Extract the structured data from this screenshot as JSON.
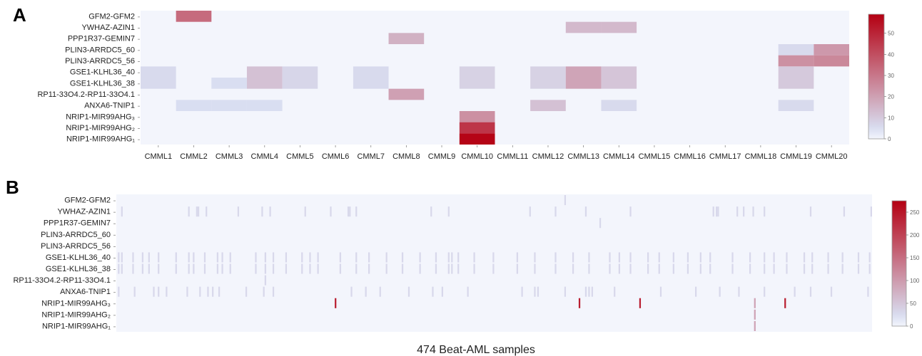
{
  "panels": {
    "a": {
      "letter": "A"
    },
    "b": {
      "letter": "B",
      "xlabel": "474 Beat-AML samples"
    }
  },
  "colors": {
    "low": "#f3f5fc",
    "mid": "#d9dff2",
    "high": "#b40012"
  },
  "chart_data": [
    {
      "type": "heatmap",
      "rows": [
        "GFM2-GFM2",
        "YWHAZ-AZIN1",
        "PPP1R37-GEMIN7",
        "PLIN3-ARRDC5_60",
        "PLIN3-ARRDC5_56",
        "GSE1-KLHL36_40",
        "GSE1-KLHL36_38",
        "RP11-33O4.2-RP11-33O4.1",
        "ANXA6-TNIP1",
        "NRIP1-MIR99AHG3",
        "NRIP1-MIR99AHG2",
        "NRIP1-MIR99AHG1"
      ],
      "columns": [
        "CMML1",
        "CMML2",
        "CMML3",
        "CMML4",
        "CMML5",
        "CMML6",
        "CMML7",
        "CMML8",
        "CMML9",
        "CMML10",
        "CMML11",
        "CMML12",
        "CMML13",
        "CMML14",
        "CMML15",
        "CMML16",
        "CMML17",
        "CMML18",
        "CMML19",
        "CMML20"
      ],
      "values": [
        [
          0,
          33,
          0,
          0,
          0,
          0,
          0,
          0,
          0,
          0,
          0,
          0,
          0,
          0,
          0,
          0,
          0,
          0,
          0,
          0
        ],
        [
          0,
          0,
          0,
          0,
          0,
          0,
          0,
          0,
          0,
          0,
          0,
          0,
          14,
          14,
          0,
          0,
          0,
          0,
          0,
          0
        ],
        [
          0,
          0,
          0,
          0,
          0,
          0,
          0,
          16,
          0,
          0,
          0,
          0,
          0,
          0,
          0,
          0,
          0,
          0,
          0,
          0
        ],
        [
          0,
          0,
          0,
          0,
          0,
          0,
          0,
          0,
          0,
          0,
          0,
          0,
          0,
          0,
          0,
          0,
          0,
          0,
          6,
          22
        ],
        [
          0,
          0,
          0,
          0,
          0,
          0,
          0,
          0,
          0,
          0,
          0,
          0,
          0,
          0,
          0,
          0,
          0,
          0,
          24,
          26
        ],
        [
          6,
          0,
          0,
          12,
          7,
          0,
          6,
          0,
          0,
          8,
          0,
          8,
          19,
          11,
          0,
          0,
          0,
          0,
          10,
          0
        ],
        [
          6,
          0,
          5,
          12,
          7,
          0,
          6,
          0,
          0,
          8,
          0,
          8,
          19,
          11,
          0,
          0,
          0,
          0,
          10,
          0
        ],
        [
          0,
          0,
          0,
          0,
          0,
          0,
          0,
          20,
          0,
          0,
          0,
          0,
          0,
          0,
          0,
          0,
          0,
          0,
          0,
          0
        ],
        [
          0,
          5,
          5,
          5,
          0,
          0,
          0,
          0,
          0,
          0,
          0,
          12,
          0,
          6,
          0,
          0,
          0,
          0,
          6,
          0
        ],
        [
          0,
          0,
          0,
          0,
          0,
          0,
          0,
          0,
          0,
          24,
          0,
          0,
          0,
          0,
          0,
          0,
          0,
          0,
          0,
          0
        ],
        [
          0,
          0,
          0,
          0,
          0,
          0,
          0,
          0,
          0,
          46,
          0,
          0,
          0,
          0,
          0,
          0,
          0,
          0,
          0,
          0
        ],
        [
          0,
          0,
          0,
          0,
          0,
          0,
          0,
          0,
          0,
          58,
          0,
          0,
          0,
          0,
          0,
          0,
          0,
          0,
          0,
          0
        ]
      ],
      "colorbar": {
        "min": 0,
        "max": 59,
        "ticks": [
          0,
          10,
          20,
          30,
          40,
          50
        ]
      }
    },
    {
      "type": "heatmap",
      "rows": [
        "GFM2-GFM2",
        "YWHAZ-AZIN1",
        "PPP1R37-GEMIN7",
        "PLIN3-ARRDC5_60",
        "PLIN3-ARRDC5_56",
        "GSE1-KLHL36_40",
        "GSE1-KLHL36_38",
        "RP11-33O4.2-RP11-33O4.1",
        "ANXA6-TNIP1",
        "NRIP1-MIR99AHG3",
        "NRIP1-MIR99AHG2",
        "NRIP1-MIR99AHG1"
      ],
      "n_columns": 474,
      "cells": [
        {
          "row": 0,
          "cols": [
            281
          ],
          "value": 30
        },
        {
          "row": 1,
          "cols": [
            3,
            45,
            50,
            51,
            56,
            76,
            91,
            96,
            118,
            134,
            145,
            146,
            150,
            197,
            208,
            259,
            275,
            294,
            322,
            374,
            376,
            377,
            389,
            393,
            399,
            406,
            435,
            456,
            473
          ],
          "value": 30
        },
        {
          "row": 2,
          "cols": [
            303
          ],
          "value": 30
        },
        {
          "row": 5,
          "cols": [
            1,
            3,
            10,
            16,
            20,
            26,
            37,
            45,
            48,
            55,
            63,
            66,
            71,
            87,
            93,
            98,
            106,
            116,
            121,
            126,
            140,
            150,
            158,
            169,
            179,
            190,
            200,
            208,
            210,
            214,
            224,
            236,
            251,
            262,
            275,
            286,
            296,
            309,
            315,
            322,
            333,
            340,
            349,
            358,
            366,
            372,
            386,
            397,
            406,
            412,
            420,
            431,
            436,
            446,
            455,
            465,
            472
          ],
          "value": 30
        },
        {
          "row": 6,
          "cols": [
            1,
            3,
            10,
            16,
            20,
            26,
            37,
            45,
            48,
            55,
            63,
            66,
            71,
            87,
            93,
            98,
            106,
            116,
            121,
            126,
            140,
            150,
            158,
            169,
            179,
            190,
            200,
            208,
            210,
            214,
            224,
            236,
            251,
            262,
            275,
            286,
            296,
            309,
            315,
            322,
            333,
            340,
            349,
            358,
            366,
            372,
            386,
            397,
            406,
            412,
            420,
            431,
            436,
            446,
            455,
            465,
            472
          ],
          "value": 30
        },
        {
          "row": 7,
          "cols": [
            93
          ],
          "value": 30
        },
        {
          "row": 8,
          "cols": [
            1,
            11,
            23,
            26,
            31,
            44,
            52,
            57,
            60,
            64,
            81,
            92,
            98,
            147,
            156,
            165,
            183,
            198,
            204,
            220,
            254,
            262,
            264,
            281,
            294,
            296,
            298,
            312,
            341,
            363,
            378,
            390,
            406,
            425,
            435,
            448,
            471
          ],
          "value": 30
        },
        {
          "row": 9,
          "cols": [
            137,
            290,
            328,
            419
          ],
          "value": 240
        },
        {
          "row": 9,
          "cols": [
            400
          ],
          "value": 90
        },
        {
          "row": 10,
          "cols": [
            400
          ],
          "value": 90
        },
        {
          "row": 11,
          "cols": [
            400
          ],
          "value": 90
        }
      ],
      "colorbar": {
        "min": 0,
        "max": 275,
        "ticks": [
          0,
          50,
          100,
          150,
          200,
          250
        ]
      }
    }
  ]
}
